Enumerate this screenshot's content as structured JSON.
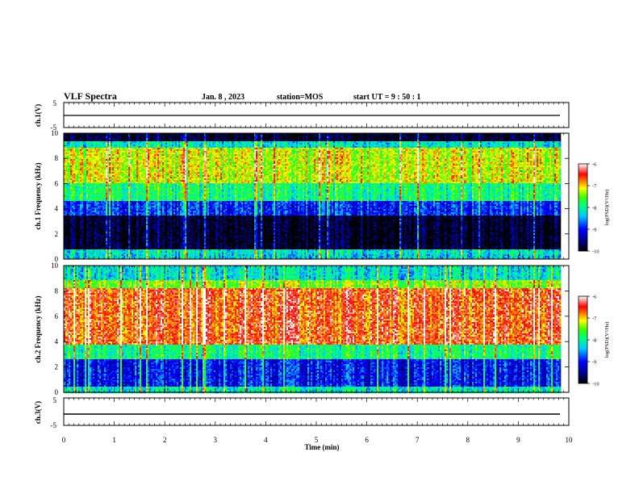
{
  "header": {
    "title": "VLF Spectra",
    "date": "Jan. 8 , 2023",
    "station": "station=MOS",
    "start": "start UT = 9 : 50 : 1"
  },
  "chart_data": [
    {
      "type": "line",
      "panel": "ch1-voltage",
      "ylabel": "ch.1(V)",
      "ylim": [
        -5,
        5
      ],
      "yticks": [
        "5",
        "-5"
      ],
      "xlim": [
        0,
        10
      ],
      "series": [
        {
          "x": [
            0,
            9.83
          ],
          "y": [
            -0.2,
            -0.2
          ]
        }
      ]
    },
    {
      "type": "heatmap",
      "panel": "ch1-spectrogram",
      "ylabel": "ch.1 Frequency (kHz)",
      "ylim": [
        0,
        10
      ],
      "yticks": [
        "0",
        "2",
        "4",
        "6",
        "8",
        "10"
      ],
      "xlim": [
        0,
        10
      ],
      "data_end_min": 9.83,
      "colorbar": {
        "label": "log(PSD)(V²/Hz)",
        "range": [
          -10,
          -6
        ],
        "ticks": [
          "-6",
          "-7",
          "-8",
          "-9",
          "-10"
        ]
      },
      "bands_khz_logpsd": [
        {
          "from": 0,
          "to": 0.4,
          "level": -8.3
        },
        {
          "from": 0.4,
          "to": 0.8,
          "level": -8.2
        },
        {
          "from": 0.8,
          "to": 3.4,
          "level": -9.9
        },
        {
          "from": 3.4,
          "to": 4.6,
          "level": -8.9
        },
        {
          "from": 4.6,
          "to": 6.0,
          "level": -7.9
        },
        {
          "from": 6.0,
          "to": 8.8,
          "level": -7.2
        },
        {
          "from": 8.8,
          "to": 9.4,
          "level": -8.2
        },
        {
          "from": 9.4,
          "to": 10,
          "level": -9.9
        }
      ]
    },
    {
      "type": "heatmap",
      "panel": "ch2-spectrogram",
      "ylabel": "ch.2 Frequency (kHz)",
      "ylim": [
        0,
        10
      ],
      "yticks": [
        "0",
        "2",
        "4",
        "6",
        "8",
        "10"
      ],
      "xlim": [
        0,
        10
      ],
      "data_end_min": 9.83,
      "colorbar": {
        "label": "log(PSD)(V²/Hz)",
        "range": [
          -10,
          -6
        ],
        "ticks": [
          "-6",
          "-7",
          "-8",
          "-9",
          "-10"
        ]
      },
      "bands_khz_logpsd": [
        {
          "from": 0,
          "to": 0.4,
          "level": -8.1
        },
        {
          "from": 0.4,
          "to": 2.6,
          "level": -9.0
        },
        {
          "from": 2.6,
          "to": 3.8,
          "level": -7.9
        },
        {
          "from": 3.8,
          "to": 8.2,
          "level": -6.6
        },
        {
          "from": 8.2,
          "to": 8.8,
          "level": -7.4
        },
        {
          "from": 8.8,
          "to": 10,
          "level": -8.2
        }
      ]
    },
    {
      "type": "line",
      "panel": "ch3-voltage",
      "ylabel": "ch.3(V)",
      "ylim": [
        -5,
        5
      ],
      "yticks": [
        "5",
        "-5"
      ],
      "xlabel": "Time (min)",
      "xlim": [
        0,
        10
      ],
      "xticks": [
        "0",
        "1",
        "2",
        "3",
        "4",
        "5",
        "6",
        "7",
        "8",
        "9",
        "10"
      ],
      "series": [
        {
          "x": [
            0,
            9.83
          ],
          "y": [
            -1.5,
            -1.5
          ]
        }
      ]
    }
  ]
}
